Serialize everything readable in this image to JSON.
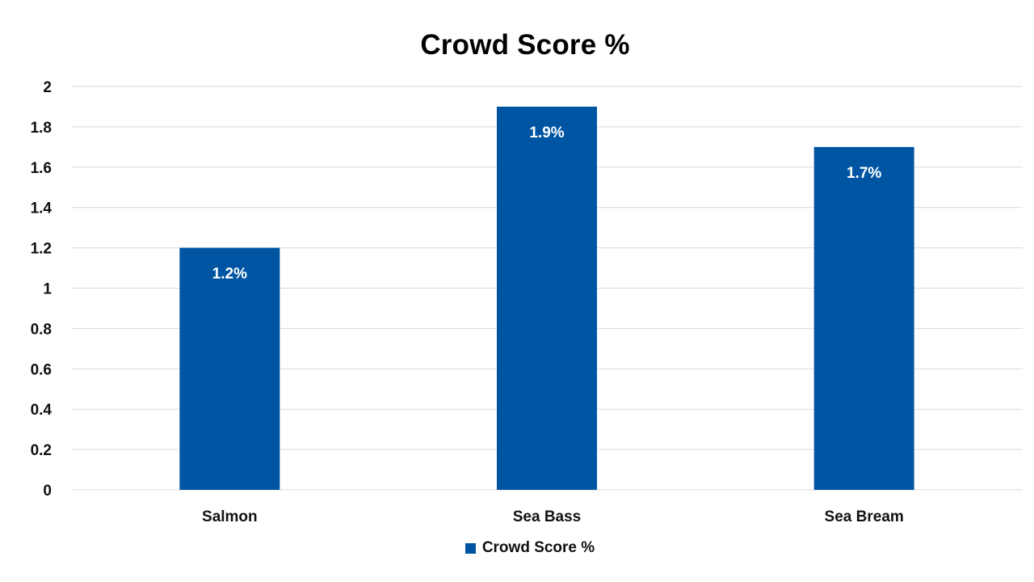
{
  "chart_data": {
    "type": "bar",
    "title": "Crowd Score %",
    "categories": [
      "Salmon",
      "Sea Bass",
      "Sea Bream"
    ],
    "series": [
      {
        "name": "Crowd Score %",
        "values": [
          1.2,
          1.9,
          1.7
        ],
        "data_labels": [
          "1.2%",
          "1.9%",
          "1.7%"
        ],
        "color": "#0055A3"
      }
    ],
    "xlabel": "",
    "ylabel": "",
    "ylim": [
      0,
      2
    ],
    "y_ticks": [
      "0",
      "0.2",
      "0.4",
      "0.6",
      "0.8",
      "1",
      "1.2",
      "1.4",
      "1.6",
      "1.8",
      "2"
    ],
    "grid": true,
    "grid_color": "#D9D9D9",
    "legend_position": "bottom"
  }
}
